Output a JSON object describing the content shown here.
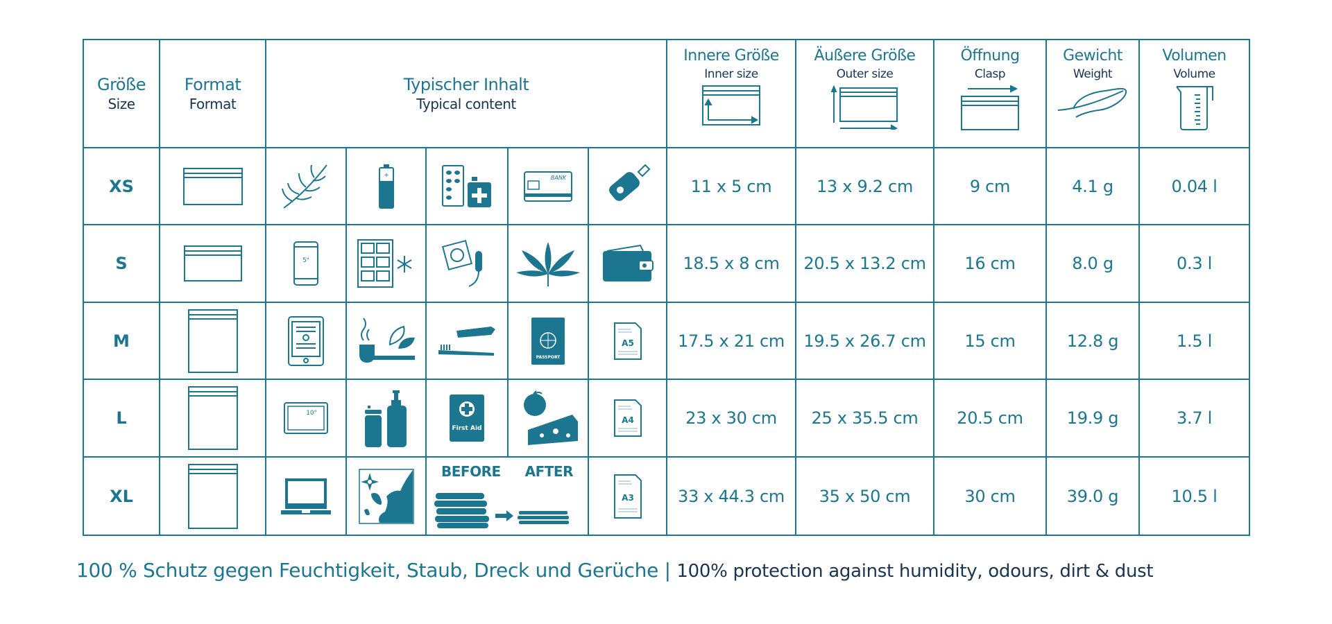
{
  "colors": {
    "accent": "#1d7690",
    "dark_text": "#1a3550"
  },
  "headers": {
    "size": {
      "de": "Größe",
      "en": "Size"
    },
    "format": {
      "de": "Format",
      "en": "Format"
    },
    "content": {
      "de": "Typischer Inhalt",
      "en": "Typical content"
    },
    "inner": {
      "de": "Innere Größe",
      "en": "Inner size"
    },
    "outer": {
      "de": "Äußere Größe",
      "en": "Outer size"
    },
    "clasp": {
      "de": "Öffnung",
      "en": "Clasp"
    },
    "weight": {
      "de": "Gewicht",
      "en": "Weight"
    },
    "volume": {
      "de": "Volumen",
      "en": "Volume"
    }
  },
  "rows": [
    {
      "size": "XS",
      "format": "landscape",
      "inner": "11 x 5 cm",
      "outer": "13 x 9.2 cm",
      "clasp": "9 cm",
      "weight": "4.1 g",
      "volume": "0.04 l",
      "icons": [
        "herb-icon",
        "battery-icon",
        "pills-icon",
        "bank-card-icon",
        "car-key-icon"
      ]
    },
    {
      "size": "S",
      "format": "landscape",
      "inner": "18.5 x 8 cm",
      "outer": "20.5 x 13.2 cm",
      "clasp": "16 cm",
      "weight": "8.0 g",
      "volume": "0.3 l",
      "icons": [
        "smartphone-icon",
        "ice-cubes-icon",
        "condom-tampon-icon",
        "cannabis-leaf-icon",
        "wallet-icon"
      ]
    },
    {
      "size": "M",
      "format": "portrait",
      "inner": "17.5 x 21 cm",
      "outer": "19.5 x 26.7 cm",
      "clasp": "15 cm",
      "weight": "12.8 g",
      "volume": "1.5 l",
      "icons": [
        "ereader-icon",
        "pipe-tea-icon",
        "toothbrush-icon",
        "passport-icon",
        "document-a5-icon"
      ]
    },
    {
      "size": "L",
      "format": "portrait",
      "inner": "23 x 30 cm",
      "outer": "25 x 35.5 cm",
      "clasp": "20.5 cm",
      "weight": "19.9 g",
      "volume": "3.7 l",
      "icons": [
        "tablet-icon",
        "bottles-icon",
        "first-aid-icon",
        "food-icon",
        "document-a4-icon"
      ]
    },
    {
      "size": "XL",
      "format": "portrait",
      "inner": "33 x 44.3 cm",
      "outer": "35 x 50 cm",
      "clasp": "30 cm",
      "weight": "39.0 g",
      "volume": "10.5 l",
      "icons": [
        "laptop-icon",
        "map-icon",
        "clothes-compression-icon",
        "document-a3-icon"
      ]
    }
  ],
  "icon_labels": {
    "phone": "5\"",
    "tablet": "10\"",
    "bank": "BANK",
    "passport": "PASSPORT",
    "first_aid": "First Aid",
    "a5": "A5",
    "a4": "A4",
    "a3": "A3",
    "before": "BEFORE",
    "after": "AFTER"
  },
  "footer": {
    "de": "100 % Schutz gegen Feuchtigkeit, Staub, Dreck und Gerüche",
    "sep": "|",
    "en": "100% protection against humidity, odours, dirt & dust"
  }
}
